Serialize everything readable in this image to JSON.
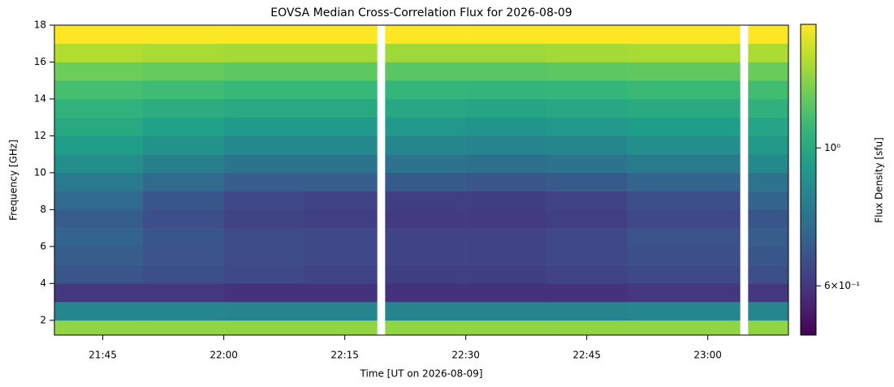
{
  "chart_data": {
    "type": "heatmap",
    "title": "EOVSA Median Cross-Correlation Flux for 2026-08-09",
    "xlabel": "Time [UT on 2026-08-09]",
    "ylabel": "Frequency [GHz]",
    "colorbar_label": "Flux Density [sfu]",
    "xlim": [
      "21:39",
      "23:10"
    ],
    "xticks": [
      "21:45",
      "22:00",
      "22:15",
      "22:30",
      "22:45",
      "23:00"
    ],
    "ylim": [
      1.2,
      18
    ],
    "yticks": [
      2,
      4,
      6,
      8,
      10,
      12,
      14,
      16,
      18
    ],
    "clim": [
      0.5,
      1.58
    ],
    "clog": true,
    "cmap": "viridis",
    "cticks": [
      {
        "value": 0.6,
        "label": "6×10⁻¹"
      },
      {
        "value": 1,
        "label": "10⁰"
      }
    ],
    "xbins": [
      "21:39",
      "21:50",
      "22:00",
      "22:10",
      "22:19",
      "22:20",
      "22:30",
      "22:40",
      "22:50",
      "23:04",
      "23:05",
      "23:10"
    ],
    "ybins": [
      1.2,
      2,
      3,
      4,
      5,
      6,
      7,
      8,
      9,
      10,
      11,
      12,
      13,
      14,
      15,
      16,
      17,
      18
    ],
    "values": [
      [
        1.3,
        1.3,
        1.3,
        1.3,
        null,
        1.3,
        1.3,
        1.3,
        1.3,
        null,
        1.3
      ],
      [
        0.85,
        0.85,
        0.84,
        0.84,
        null,
        0.84,
        0.84,
        0.84,
        0.85,
        null,
        0.85
      ],
      [
        0.6,
        0.6,
        0.59,
        0.59,
        null,
        0.59,
        0.59,
        0.59,
        0.6,
        null,
        0.6
      ],
      [
        0.68,
        0.66,
        0.64,
        0.63,
        null,
        0.62,
        0.62,
        0.63,
        0.64,
        null,
        0.66
      ],
      [
        0.7,
        0.67,
        0.65,
        0.64,
        null,
        0.63,
        0.63,
        0.64,
        0.66,
        null,
        0.68
      ],
      [
        0.72,
        0.68,
        0.65,
        0.64,
        null,
        0.63,
        0.63,
        0.64,
        0.67,
        null,
        0.7
      ],
      [
        0.7,
        0.66,
        0.63,
        0.62,
        null,
        0.61,
        0.61,
        0.62,
        0.64,
        null,
        0.68
      ],
      [
        0.74,
        0.68,
        0.64,
        0.63,
        null,
        0.62,
        0.62,
        0.63,
        0.66,
        null,
        0.72
      ],
      [
        0.8,
        0.74,
        0.7,
        0.7,
        null,
        0.69,
        0.68,
        0.69,
        0.72,
        null,
        0.78
      ],
      [
        0.88,
        0.82,
        0.78,
        0.78,
        null,
        0.77,
        0.76,
        0.77,
        0.8,
        null,
        0.86
      ],
      [
        0.95,
        0.9,
        0.86,
        0.86,
        null,
        0.85,
        0.84,
        0.85,
        0.88,
        null,
        0.92
      ],
      [
        1.0,
        0.96,
        0.93,
        0.93,
        null,
        0.92,
        0.91,
        0.92,
        0.95,
        null,
        0.98
      ],
      [
        1.05,
        1.02,
        1.0,
        1.0,
        null,
        0.99,
        0.98,
        0.99,
        1.01,
        null,
        1.04
      ],
      [
        1.12,
        1.1,
        1.08,
        1.08,
        null,
        1.07,
        1.06,
        1.07,
        1.09,
        null,
        1.11
      ],
      [
        1.22,
        1.2,
        1.18,
        1.18,
        null,
        1.17,
        1.17,
        1.18,
        1.19,
        null,
        1.21
      ],
      [
        1.38,
        1.36,
        1.35,
        1.35,
        null,
        1.34,
        1.34,
        1.35,
        1.36,
        null,
        1.37
      ],
      [
        1.6,
        1.6,
        1.6,
        1.6,
        null,
        1.6,
        1.6,
        1.6,
        1.6,
        null,
        1.6
      ]
    ]
  }
}
